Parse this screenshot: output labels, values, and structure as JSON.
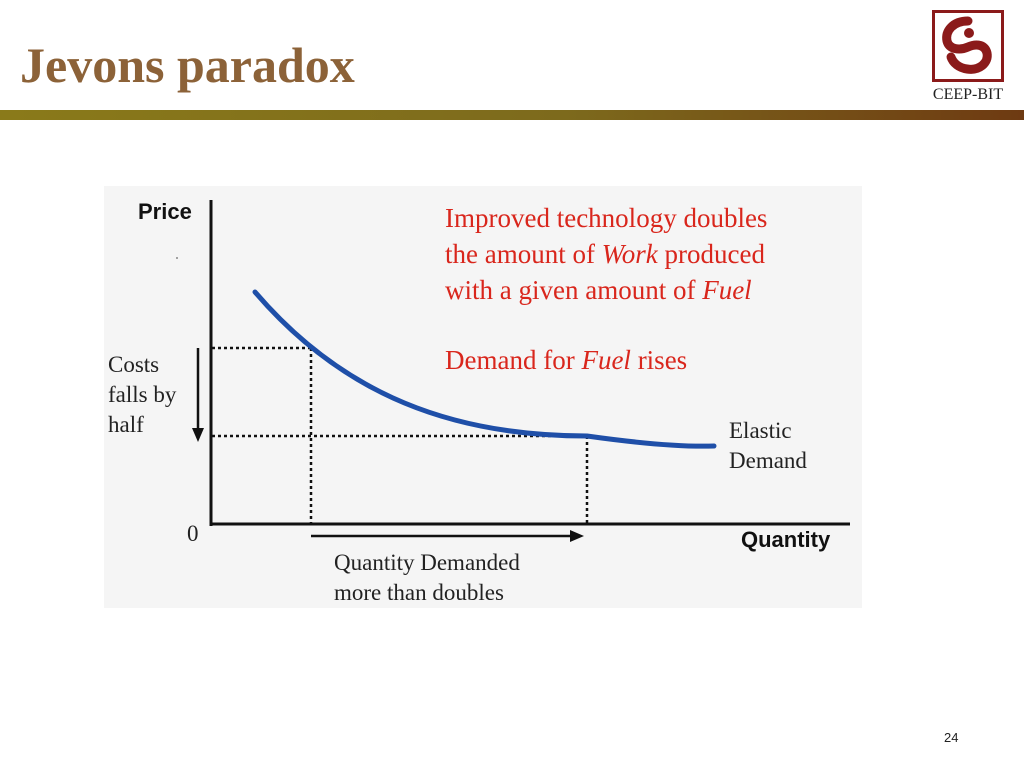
{
  "slide": {
    "title": "Jevons paradox",
    "page_number": "24"
  },
  "logo": {
    "text": "CEEP-BIT",
    "icon": "ceep-swirl-icon",
    "color": "#8b1a1a"
  },
  "figure": {
    "y_axis_label": "Price",
    "x_axis_label": "Quantity",
    "origin_label": "0",
    "cost_annotation": [
      "Costs",
      "falls by",
      "half"
    ],
    "quantity_annotation": [
      "Quantity Demanded",
      "more than doubles"
    ],
    "curve_label": [
      "Elastic",
      "Demand"
    ],
    "red_note": {
      "line1": "Improved technology doubles",
      "line2_pre": "the amount of ",
      "line2_em": "Work",
      "line2_post": " produced",
      "line3_pre": "with a given amount of ",
      "line3_em": "Fuel",
      "line4_pre": "Demand for ",
      "line4_em": "Fuel",
      "line4_post": " rises"
    },
    "colors": {
      "curve": "#1f4fa8",
      "note": "#d9261c",
      "axes": "#111111"
    }
  }
}
